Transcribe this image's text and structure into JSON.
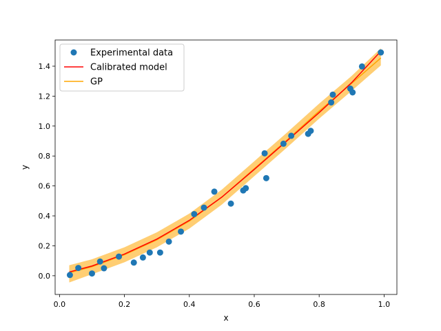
{
  "chart_data": {
    "type": "scatter",
    "title": "",
    "xlabel": "x",
    "ylabel": "y",
    "xlim": [
      -0.0135,
      1.0395
    ],
    "ylim": [
      -0.125,
      1.575
    ],
    "xticks": [
      0.0,
      0.2,
      0.4,
      0.6,
      0.8,
      1.0
    ],
    "xtick_labels": [
      "0.0",
      "0.2",
      "0.4",
      "0.6",
      "0.8",
      "1.0"
    ],
    "yticks": [
      0.0,
      0.2,
      0.4,
      0.6,
      0.8,
      1.0,
      1.2,
      1.4
    ],
    "ytick_labels": [
      "0.0",
      "0.2",
      "0.4",
      "0.6",
      "0.8",
      "1.0",
      "1.2",
      "1.4"
    ],
    "grid": false,
    "legend_position": "upper-left",
    "legend": [
      {
        "label": "Experimental data",
        "marker": "circle",
        "color": "#1f77b4"
      },
      {
        "label": "Calibrated model",
        "marker": "line",
        "color": "#ff0000"
      },
      {
        "label": "GP",
        "marker": "line",
        "color": "#ffa500"
      }
    ],
    "series": [
      {
        "name": "Experimental data",
        "kind": "scatter",
        "color": "#1f77b4",
        "points": [
          [
            0.032,
            0.005
          ],
          [
            0.058,
            0.052
          ],
          [
            0.1,
            0.015
          ],
          [
            0.125,
            0.095
          ],
          [
            0.137,
            0.05
          ],
          [
            0.183,
            0.128
          ],
          [
            0.229,
            0.088
          ],
          [
            0.257,
            0.122
          ],
          [
            0.278,
            0.155
          ],
          [
            0.31,
            0.155
          ],
          [
            0.337,
            0.228
          ],
          [
            0.374,
            0.295
          ],
          [
            0.415,
            0.412
          ],
          [
            0.445,
            0.455
          ],
          [
            0.477,
            0.562
          ],
          [
            0.528,
            0.482
          ],
          [
            0.566,
            0.57
          ],
          [
            0.574,
            0.585
          ],
          [
            0.632,
            0.818
          ],
          [
            0.637,
            0.652
          ],
          [
            0.69,
            0.882
          ],
          [
            0.714,
            0.935
          ],
          [
            0.766,
            0.948
          ],
          [
            0.774,
            0.968
          ],
          [
            0.837,
            1.158
          ],
          [
            0.842,
            1.21
          ],
          [
            0.896,
            1.25
          ],
          [
            0.903,
            1.225
          ],
          [
            0.932,
            1.398
          ],
          [
            0.99,
            1.492
          ]
        ]
      },
      {
        "name": "Calibrated model",
        "kind": "line",
        "color": "#ff0000",
        "points": [
          [
            0.03,
            0.025
          ],
          [
            0.1,
            0.065
          ],
          [
            0.2,
            0.145
          ],
          [
            0.3,
            0.245
          ],
          [
            0.4,
            0.37
          ],
          [
            0.5,
            0.525
          ],
          [
            0.6,
            0.71
          ],
          [
            0.7,
            0.9
          ],
          [
            0.8,
            1.09
          ],
          [
            0.9,
            1.29
          ],
          [
            0.99,
            1.5
          ]
        ]
      },
      {
        "name": "GP",
        "kind": "band",
        "color": "#ffa500",
        "x": [
          0.03,
          0.1,
          0.2,
          0.3,
          0.4,
          0.5,
          0.6,
          0.7,
          0.8,
          0.9,
          0.99
        ],
        "mean": [
          0.02,
          0.06,
          0.14,
          0.24,
          0.365,
          0.525,
          0.715,
          0.905,
          1.1,
          1.285,
          1.455
        ],
        "upper": [
          0.07,
          0.11,
          0.19,
          0.29,
          0.415,
          0.575,
          0.765,
          0.955,
          1.15,
          1.335,
          1.52
        ],
        "lower": [
          -0.045,
          0.01,
          0.09,
          0.19,
          0.315,
          0.475,
          0.665,
          0.855,
          1.05,
          1.235,
          1.405
        ]
      }
    ]
  }
}
